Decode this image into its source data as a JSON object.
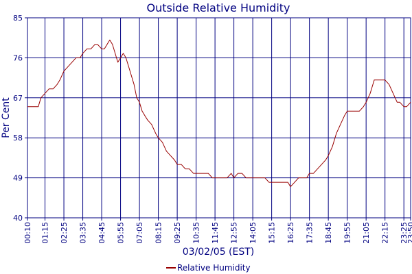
{
  "chart_data": {
    "type": "line",
    "title": "Outside Relative Humidity",
    "xlabel": "03/02/05 (EST)",
    "ylabel": "Per Cent",
    "ylim": [
      40,
      85
    ],
    "yticks": [
      40,
      49,
      58,
      67,
      76,
      85
    ],
    "x_range": [
      "00:10",
      "23:50"
    ],
    "xticks": [
      "00:10",
      "01:15",
      "02:25",
      "03:35",
      "04:45",
      "05:55",
      "07:05",
      "08:15",
      "09:25",
      "10:35",
      "11:45",
      "12:55",
      "14:05",
      "15:15",
      "16:25",
      "17:35",
      "18:45",
      "19:55",
      "21:05",
      "22:15",
      "23:25",
      "23:50"
    ],
    "grid": true,
    "legend_position": "bottom-center",
    "colors": {
      "series": "#990000",
      "grid": "#000080",
      "text": "#000080",
      "axis": "#000080"
    },
    "series": [
      {
        "name": "Relative Humidity",
        "x": [
          "00:10",
          "00:30",
          "00:40",
          "00:50",
          "01:00",
          "01:15",
          "01:30",
          "01:45",
          "02:00",
          "02:10",
          "02:25",
          "02:40",
          "02:55",
          "03:10",
          "03:25",
          "03:35",
          "03:50",
          "04:05",
          "04:20",
          "04:30",
          "04:45",
          "04:55",
          "05:05",
          "05:15",
          "05:25",
          "05:35",
          "05:45",
          "05:55",
          "06:05",
          "06:15",
          "06:25",
          "06:35",
          "06:45",
          "06:55",
          "07:05",
          "07:15",
          "07:25",
          "07:35",
          "07:50",
          "08:05",
          "08:15",
          "08:30",
          "08:45",
          "09:00",
          "09:15",
          "09:25",
          "09:40",
          "09:55",
          "10:10",
          "10:25",
          "10:35",
          "10:50",
          "11:05",
          "11:20",
          "11:35",
          "11:45",
          "12:00",
          "12:15",
          "12:30",
          "12:45",
          "12:55",
          "13:10",
          "13:25",
          "13:40",
          "13:55",
          "14:05",
          "14:20",
          "14:35",
          "14:50",
          "15:05",
          "15:15",
          "15:30",
          "15:45",
          "16:00",
          "16:15",
          "16:25",
          "16:40",
          "16:55",
          "17:10",
          "17:25",
          "17:35",
          "17:50",
          "18:05",
          "18:20",
          "18:35",
          "18:45",
          "19:00",
          "19:15",
          "19:30",
          "19:45",
          "19:55",
          "20:10",
          "20:25",
          "20:40",
          "20:55",
          "21:05",
          "21:20",
          "21:35",
          "21:50",
          "22:05",
          "22:15",
          "22:30",
          "22:45",
          "23:00",
          "23:10",
          "23:25",
          "23:35",
          "23:50"
        ],
        "values": [
          65,
          65,
          65,
          65,
          67,
          68,
          69,
          69,
          70,
          71,
          73,
          74,
          75,
          76,
          76,
          77,
          78,
          78,
          79,
          79,
          78,
          78,
          79,
          80,
          79,
          77,
          75,
          76,
          77,
          76,
          74,
          72,
          70,
          67,
          66,
          64,
          63,
          62,
          61,
          59,
          58,
          57,
          55,
          54,
          53,
          52,
          52,
          51,
          51,
          50,
          50,
          50,
          50,
          50,
          49,
          49,
          49,
          49,
          49,
          50,
          49,
          50,
          50,
          49,
          49,
          49,
          49,
          49,
          49,
          48,
          48,
          48,
          48,
          48,
          48,
          47,
          48,
          49,
          49,
          49,
          50,
          50,
          51,
          52,
          53,
          54,
          56,
          59,
          61,
          63,
          64,
          64,
          64,
          64,
          65,
          66,
          68,
          71,
          71,
          71,
          71,
          70,
          68,
          66,
          66,
          65,
          65,
          66
        ]
      }
    ]
  }
}
